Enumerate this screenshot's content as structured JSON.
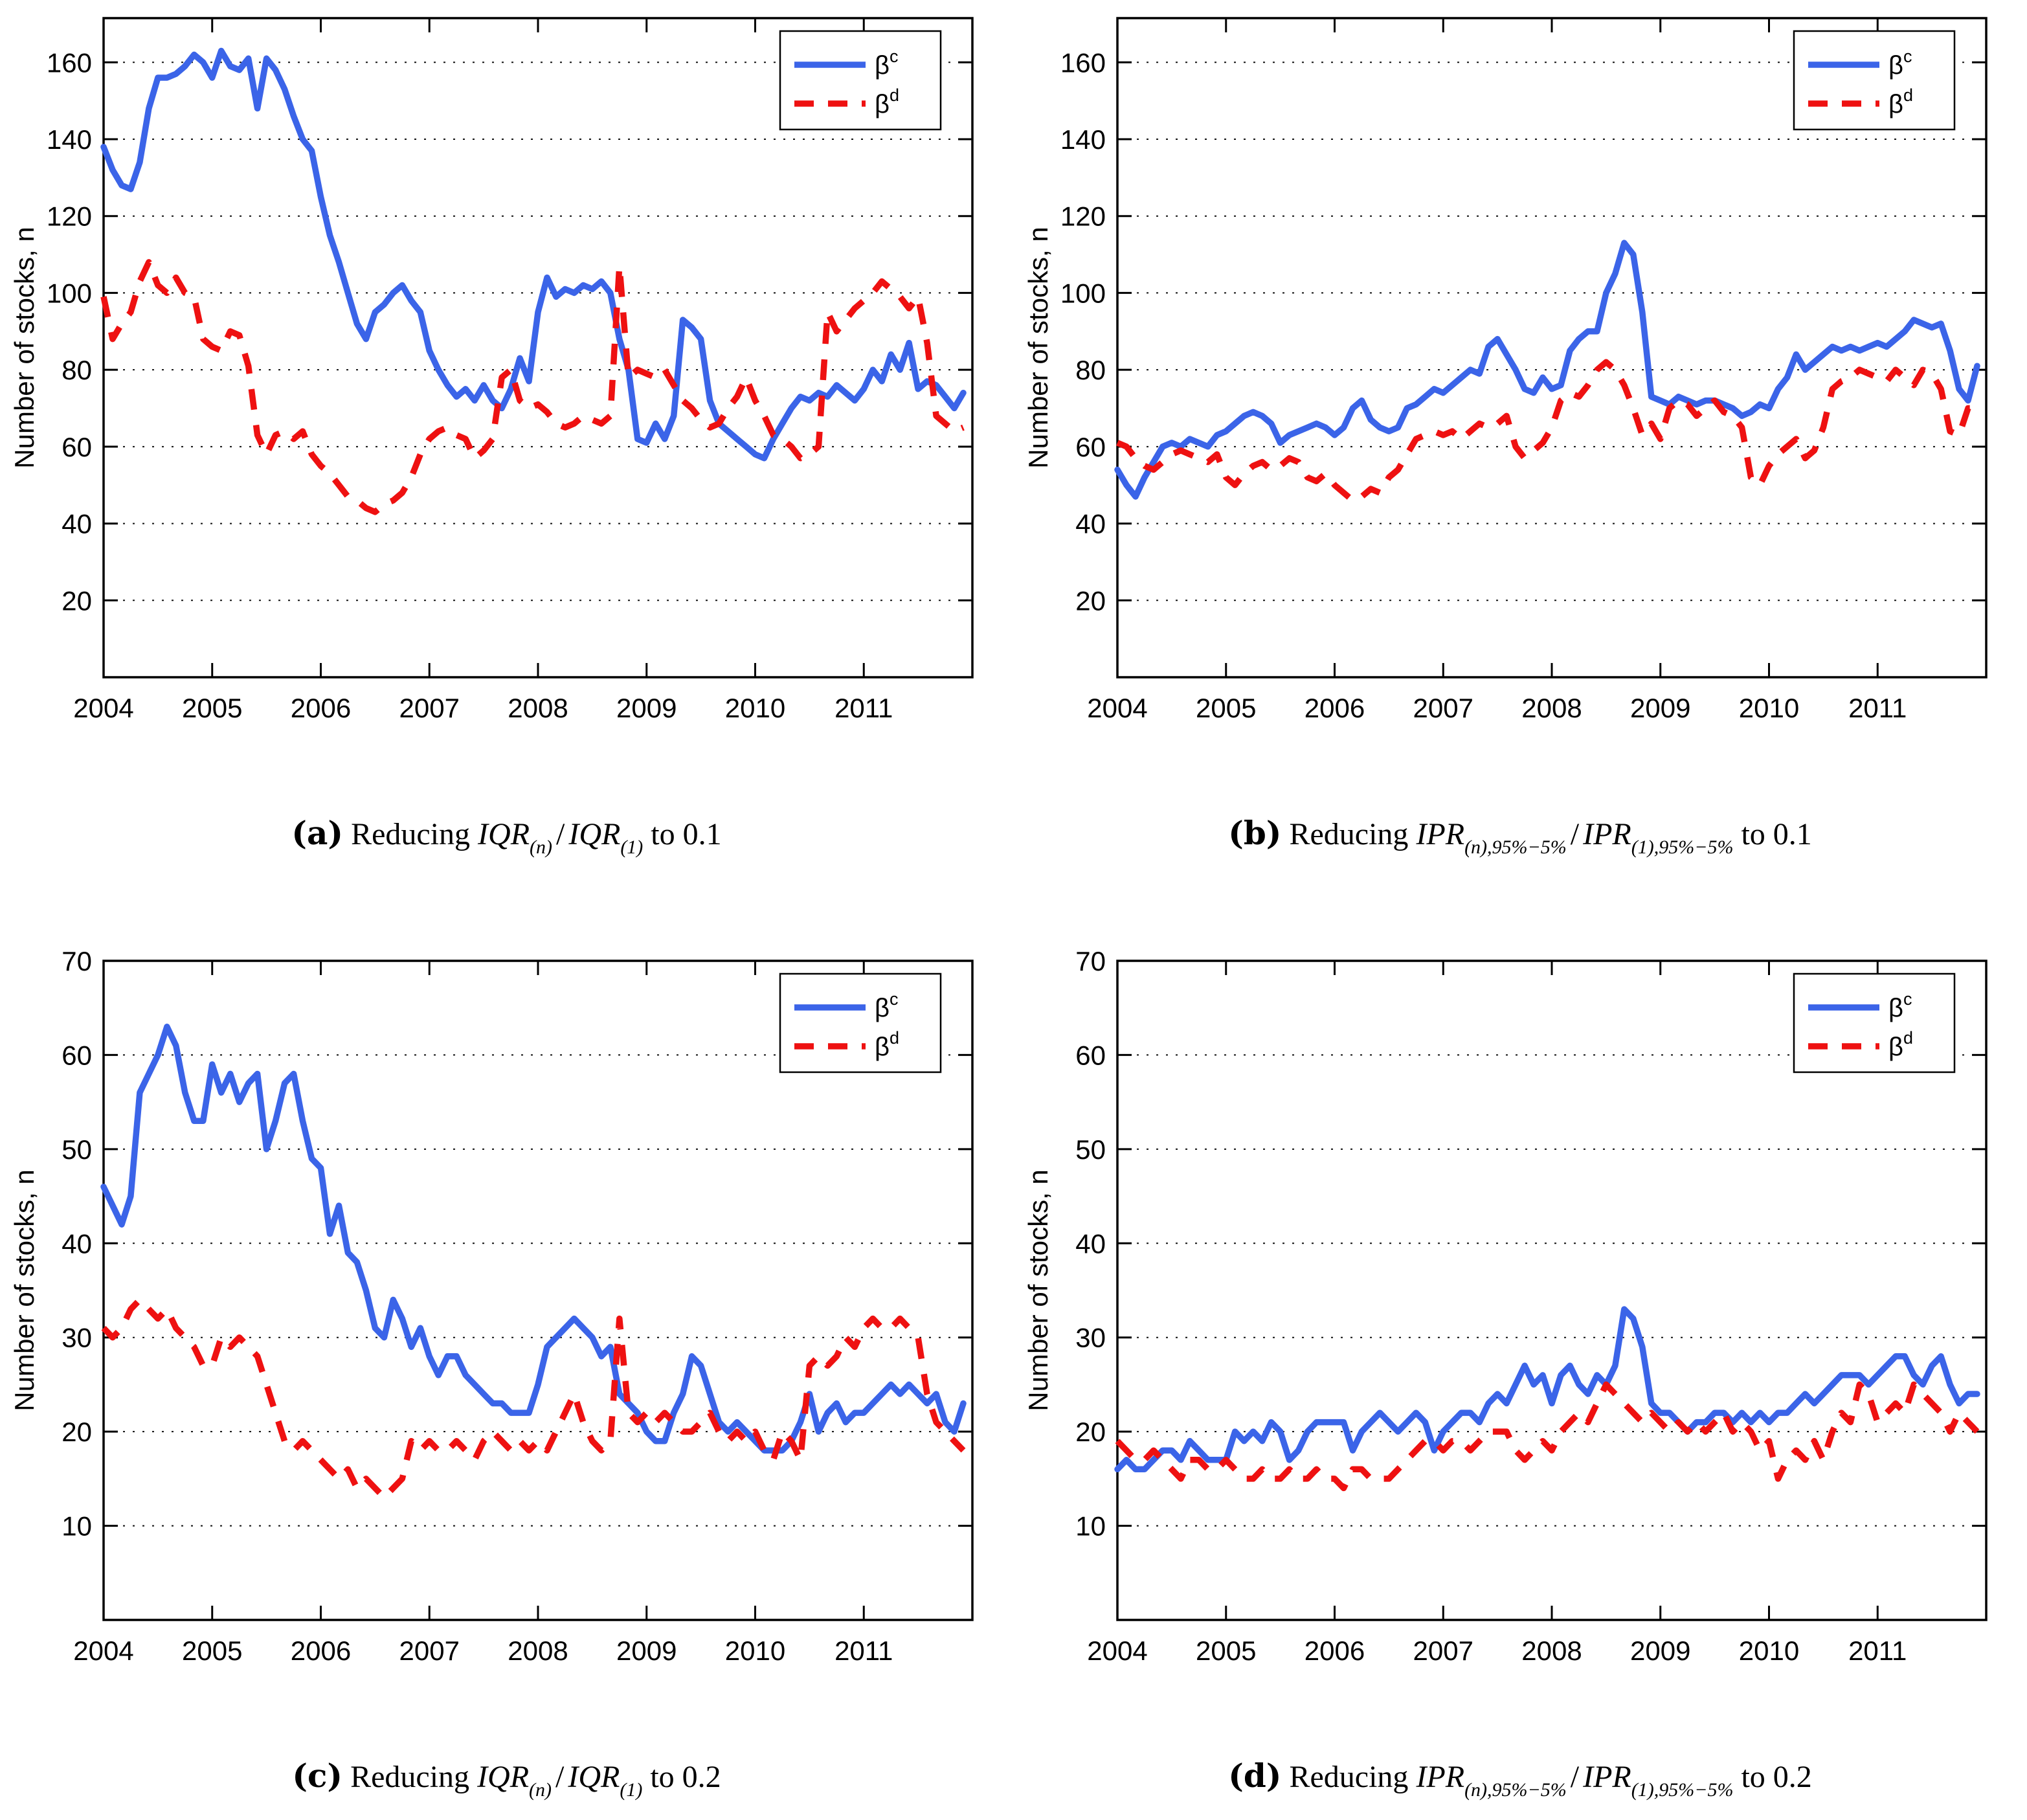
{
  "figure_title": "",
  "colors": {
    "beta_c": "#3B64E8",
    "beta_d": "#EE1111",
    "axis": "#000000",
    "grid": "#111111",
    "background": "#ffffff"
  },
  "panels": [
    {
      "id": "a",
      "caption": {
        "label": "(a)",
        "pre": "Reducing ",
        "f1": "IQR",
        "sub1": "(n)",
        "sep": "/",
        "f2": "IQR",
        "sub2": "(1)",
        "post": " to 0.1"
      }
    },
    {
      "id": "b",
      "caption": {
        "label": "(b)",
        "pre": "Reducing ",
        "f1": "IPR",
        "sub1": "(n),95%−5%",
        "sep": "/",
        "f2": "IPR",
        "sub2": "(1),95%−5%",
        "post": " to 0.1"
      }
    },
    {
      "id": "c",
      "caption": {
        "label": "(c)",
        "pre": "Reducing ",
        "f1": "IQR",
        "sub1": "(n)",
        "sep": "/",
        "f2": "IQR",
        "sub2": "(1)",
        "post": " to 0.2"
      }
    },
    {
      "id": "d",
      "caption": {
        "label": "(d)",
        "pre": "Reducing ",
        "f1": "IPR",
        "sub1": "(n),95%−5%",
        "sep": "/",
        "f2": "IPR",
        "sub2": "(1),95%−5%",
        "post": " to 0.2"
      }
    }
  ],
  "chart_data": [
    {
      "id": "a",
      "type": "line",
      "title": "",
      "xlabel": "",
      "ylabel": "Number of stocks, n",
      "xlim": [
        2004,
        2012
      ],
      "ylim": [
        0,
        171.5
      ],
      "xticks": [
        2004,
        2005,
        2006,
        2007,
        2008,
        2009,
        2010,
        2011
      ],
      "xtick_labels": [
        "2004",
        "2005",
        "2006",
        "2007",
        "2008",
        "2009",
        "2010",
        "2011"
      ],
      "yticks": [
        20,
        40,
        60,
        80,
        100,
        120,
        140,
        160
      ],
      "grid": "dotted-horizontal",
      "legend_position": "top-right",
      "legend": [
        {
          "base": "β",
          "sup": "c",
          "series": "beta_c",
          "style": "solid"
        },
        {
          "base": "β",
          "sup": "d",
          "series": "beta_d",
          "style": "dashed"
        }
      ],
      "x_start": 2004,
      "x_step_years": 0.0833333,
      "series": [
        {
          "name": "beta_c",
          "style": "solid",
          "color_key": "beta_c",
          "values": [
            138,
            132,
            128,
            127,
            134,
            148,
            156,
            156,
            157,
            159,
            162,
            160,
            156,
            163,
            159,
            158,
            161,
            148,
            161,
            158,
            153,
            146,
            140,
            137,
            125,
            115,
            108,
            100,
            92,
            88,
            95,
            97,
            100,
            102,
            98,
            95,
            85,
            80,
            76,
            73,
            75,
            72,
            76,
            72,
            70,
            75,
            83,
            77,
            95,
            104,
            99,
            101,
            100,
            102,
            101,
            103,
            100,
            88,
            80,
            62,
            61,
            66,
            62,
            68,
            93,
            91,
            88,
            72,
            66,
            64,
            62,
            60,
            58,
            57,
            62,
            66,
            70,
            73,
            72,
            74,
            73,
            76,
            74,
            72,
            75,
            80,
            77,
            84,
            80,
            87,
            75,
            77,
            76,
            73,
            70,
            74
          ]
        },
        {
          "name": "beta_d",
          "style": "dashed",
          "color_key": "beta_d",
          "values": [
            99,
            88,
            92,
            95,
            103,
            108,
            102,
            100,
            104,
            100,
            99,
            88,
            86,
            85,
            90,
            89,
            81,
            63,
            58,
            63,
            64,
            62,
            64,
            58,
            55,
            53,
            50,
            47,
            46,
            44,
            43,
            45,
            46,
            48,
            52,
            58,
            62,
            64,
            65,
            63,
            62,
            57,
            59,
            62,
            78,
            80,
            72,
            70,
            71,
            69,
            66,
            65,
            66,
            68,
            67,
            66,
            68,
            107,
            78,
            80,
            79,
            78,
            80,
            76,
            72,
            70,
            67,
            65,
            66,
            70,
            73,
            78,
            72,
            68,
            63,
            62,
            60,
            57,
            58,
            60,
            95,
            90,
            93,
            96,
            98,
            100,
            103,
            101,
            99,
            96,
            99,
            87,
            68,
            66,
            64,
            65
          ]
        }
      ]
    },
    {
      "id": "b",
      "type": "line",
      "title": "",
      "xlabel": "",
      "ylabel": "Number of stocks, n",
      "xlim": [
        2004,
        2012
      ],
      "ylim": [
        0,
        171.5
      ],
      "xticks": [
        2004,
        2005,
        2006,
        2007,
        2008,
        2009,
        2010,
        2011
      ],
      "xtick_labels": [
        "2004",
        "2005",
        "2006",
        "2007",
        "2008",
        "2009",
        "2010",
        "2011"
      ],
      "yticks": [
        20,
        40,
        60,
        80,
        100,
        120,
        140,
        160
      ],
      "grid": "dotted-horizontal",
      "legend_position": "top-right",
      "legend": [
        {
          "base": "β",
          "sup": "c",
          "series": "beta_c",
          "style": "solid"
        },
        {
          "base": "β",
          "sup": "d",
          "series": "beta_d",
          "style": "dashed"
        }
      ],
      "x_start": 2004,
      "x_step_years": 0.0833333,
      "series": [
        {
          "name": "beta_c",
          "style": "solid",
          "color_key": "beta_c",
          "values": [
            54,
            50,
            47,
            52,
            56,
            60,
            61,
            60,
            62,
            61,
            60,
            63,
            64,
            66,
            68,
            69,
            68,
            66,
            61,
            63,
            64,
            65,
            66,
            65,
            63,
            65,
            70,
            72,
            67,
            65,
            64,
            65,
            70,
            71,
            73,
            75,
            74,
            76,
            78,
            80,
            79,
            86,
            88,
            84,
            80,
            75,
            74,
            78,
            75,
            76,
            85,
            88,
            90,
            90,
            100,
            105,
            113,
            110,
            95,
            73,
            72,
            71,
            73,
            72,
            71,
            72,
            72,
            71,
            70,
            68,
            69,
            71,
            70,
            75,
            78,
            84,
            80,
            82,
            84,
            86,
            85,
            86,
            85,
            86,
            87,
            86,
            88,
            90,
            93,
            92,
            91,
            92,
            85,
            75,
            72,
            81
          ]
        },
        {
          "name": "beta_d",
          "style": "dashed",
          "color_key": "beta_d",
          "values": [
            61,
            60,
            57,
            55,
            54,
            56,
            58,
            59,
            58,
            57,
            56,
            58,
            52,
            50,
            53,
            55,
            56,
            54,
            55,
            57,
            56,
            52,
            51,
            53,
            50,
            48,
            46,
            47,
            49,
            48,
            52,
            54,
            58,
            62,
            63,
            64,
            63,
            64,
            62,
            64,
            66,
            65,
            66,
            68,
            60,
            57,
            59,
            61,
            65,
            72,
            74,
            73,
            76,
            80,
            82,
            80,
            76,
            70,
            63,
            66,
            62,
            70,
            72,
            71,
            68,
            70,
            72,
            69,
            68,
            65,
            52,
            50,
            55,
            58,
            60,
            62,
            57,
            59,
            65,
            75,
            77,
            78,
            80,
            79,
            78,
            77,
            80,
            78,
            76,
            80,
            79,
            75,
            64,
            63,
            70,
            70
          ]
        }
      ]
    },
    {
      "id": "c",
      "type": "line",
      "title": "",
      "xlabel": "",
      "ylabel": "Number of stocks, n",
      "xlim": [
        2004,
        2012
      ],
      "ylim": [
        0,
        70
      ],
      "xticks": [
        2004,
        2005,
        2006,
        2007,
        2008,
        2009,
        2010,
        2011
      ],
      "xtick_labels": [
        "2004",
        "2005",
        "2006",
        "2007",
        "2008",
        "2009",
        "2010",
        "2011"
      ],
      "yticks": [
        10,
        20,
        30,
        40,
        50,
        60,
        70
      ],
      "grid": "dotted-horizontal",
      "legend_position": "top-right",
      "legend": [
        {
          "base": "β",
          "sup": "c",
          "series": "beta_c",
          "style": "solid"
        },
        {
          "base": "β",
          "sup": "d",
          "series": "beta_d",
          "style": "dashed"
        }
      ],
      "x_start": 2004,
      "x_step_years": 0.0833333,
      "series": [
        {
          "name": "beta_c",
          "style": "solid",
          "color_key": "beta_c",
          "values": [
            46,
            44,
            42,
            45,
            56,
            58,
            60,
            63,
            61,
            56,
            53,
            53,
            59,
            56,
            58,
            55,
            57,
            58,
            50,
            53,
            57,
            58,
            53,
            49,
            48,
            41,
            44,
            39,
            38,
            35,
            31,
            30,
            34,
            32,
            29,
            31,
            28,
            26,
            28,
            28,
            26,
            25,
            24,
            23,
            23,
            22,
            22,
            22,
            25,
            29,
            30,
            31,
            32,
            31,
            30,
            28,
            29,
            24,
            23,
            22,
            20,
            19,
            19,
            22,
            24,
            28,
            27,
            24,
            21,
            20,
            21,
            20,
            19,
            18,
            18,
            18,
            19,
            21,
            24,
            20,
            22,
            23,
            21,
            22,
            22,
            23,
            24,
            25,
            24,
            25,
            24,
            23,
            24,
            21,
            20,
            23
          ]
        },
        {
          "name": "beta_d",
          "style": "dashed",
          "color_key": "beta_d",
          "values": [
            31,
            30,
            31,
            33,
            34,
            33,
            32,
            33,
            31,
            30,
            29,
            27,
            27,
            30,
            29,
            30,
            29,
            28,
            25,
            22,
            19,
            18,
            19,
            18,
            17,
            16,
            15,
            16,
            14,
            15,
            14,
            13,
            14,
            15,
            19,
            18,
            19,
            18,
            18,
            19,
            18,
            17,
            19,
            20,
            19,
            18,
            19,
            18,
            19,
            18,
            20,
            22,
            24,
            21,
            19,
            18,
            19,
            32,
            22,
            21,
            22,
            21,
            22,
            21,
            20,
            20,
            21,
            22,
            20,
            19,
            20,
            19,
            20,
            18,
            17,
            20,
            19,
            17,
            27,
            28,
            27,
            28,
            30,
            29,
            31,
            32,
            31,
            31,
            32,
            31,
            30,
            24,
            21,
            20,
            19,
            18
          ]
        }
      ]
    },
    {
      "id": "d",
      "type": "line",
      "title": "",
      "xlabel": "",
      "ylabel": "Number of stocks, n",
      "xlim": [
        2004,
        2012
      ],
      "ylim": [
        0,
        70
      ],
      "xticks": [
        2004,
        2005,
        2006,
        2007,
        2008,
        2009,
        2010,
        2011
      ],
      "xtick_labels": [
        "2004",
        "2005",
        "2006",
        "2007",
        "2008",
        "2009",
        "2010",
        "2011"
      ],
      "yticks": [
        10,
        20,
        30,
        40,
        50,
        60,
        70
      ],
      "grid": "dotted-horizontal",
      "legend_position": "top-right",
      "legend": [
        {
          "base": "β",
          "sup": "c",
          "series": "beta_c",
          "style": "solid"
        },
        {
          "base": "β",
          "sup": "d",
          "series": "beta_d",
          "style": "dashed"
        }
      ],
      "x_start": 2004,
      "x_step_years": 0.0833333,
      "series": [
        {
          "name": "beta_c",
          "style": "solid",
          "color_key": "beta_c",
          "values": [
            16,
            17,
            16,
            16,
            17,
            18,
            18,
            17,
            19,
            18,
            17,
            17,
            17,
            20,
            19,
            20,
            19,
            21,
            20,
            17,
            18,
            20,
            21,
            21,
            21,
            21,
            18,
            20,
            21,
            22,
            21,
            20,
            21,
            22,
            21,
            18,
            20,
            21,
            22,
            22,
            21,
            23,
            24,
            23,
            25,
            27,
            25,
            26,
            23,
            26,
            27,
            25,
            24,
            26,
            25,
            27,
            33,
            32,
            29,
            23,
            22,
            22,
            21,
            20,
            21,
            21,
            22,
            22,
            21,
            22,
            21,
            22,
            21,
            22,
            22,
            23,
            24,
            23,
            24,
            25,
            26,
            26,
            26,
            25,
            26,
            27,
            28,
            28,
            26,
            25,
            27,
            28,
            25,
            23,
            24,
            24
          ]
        },
        {
          "name": "beta_d",
          "style": "dashed",
          "color_key": "beta_d",
          "values": [
            19,
            18,
            17,
            17,
            18,
            17,
            16,
            15,
            17,
            17,
            16,
            16,
            17,
            16,
            15,
            15,
            16,
            15,
            15,
            16,
            15,
            15,
            16,
            15,
            15,
            14,
            16,
            16,
            15,
            15,
            15,
            16,
            17,
            18,
            19,
            19,
            18,
            19,
            19,
            18,
            19,
            20,
            20,
            20,
            18,
            17,
            18,
            19,
            18,
            20,
            21,
            22,
            21,
            23,
            25,
            24,
            23,
            22,
            21,
            22,
            21,
            20,
            21,
            20,
            21,
            20,
            21,
            22,
            20,
            21,
            20,
            18,
            19,
            15,
            17,
            18,
            17,
            19,
            17,
            20,
            22,
            21,
            25,
            24,
            21,
            22,
            23,
            22,
            25,
            24,
            23,
            22,
            20,
            22,
            21,
            20
          ]
        }
      ]
    }
  ]
}
